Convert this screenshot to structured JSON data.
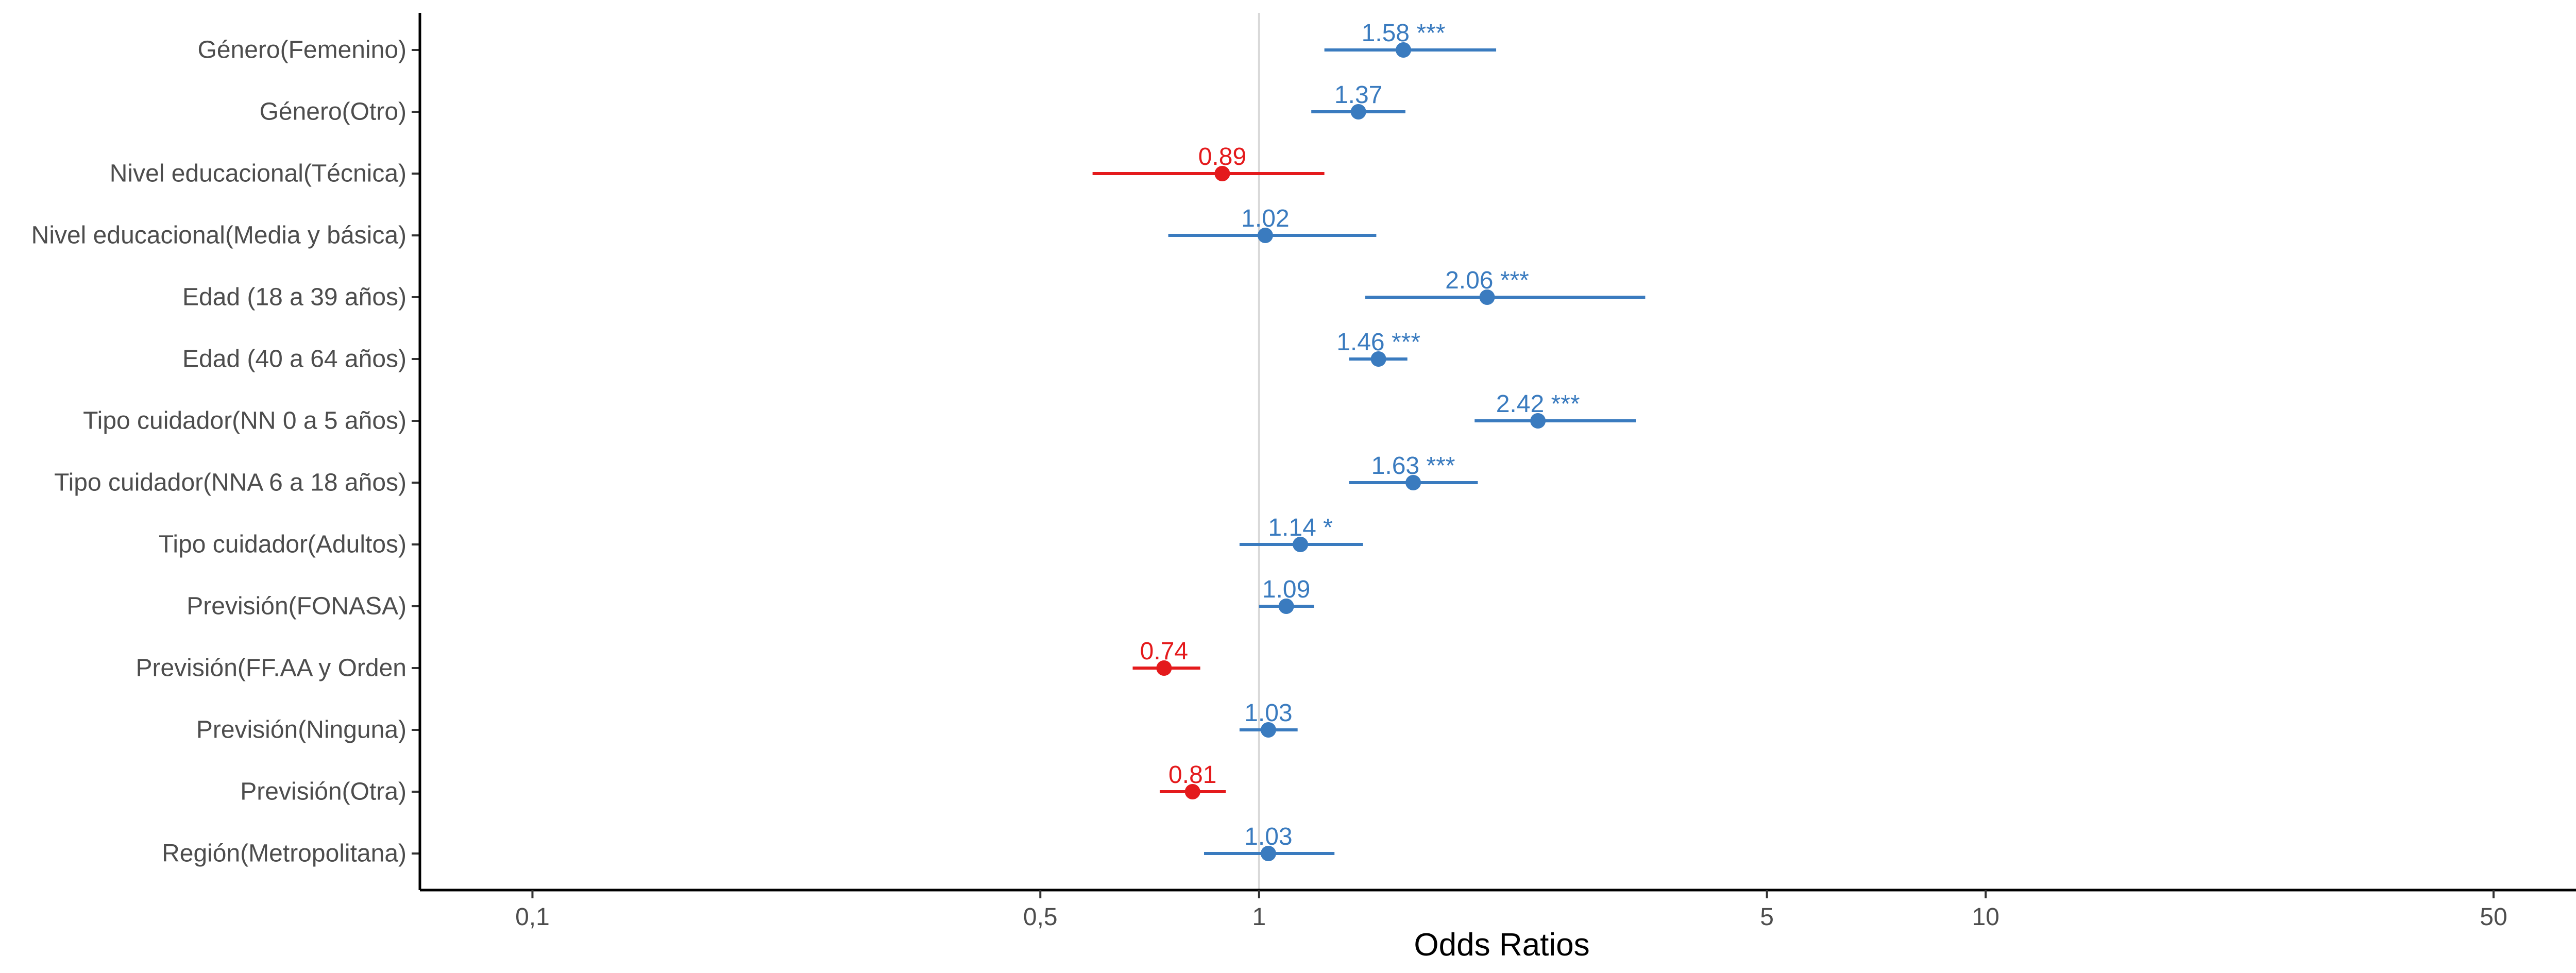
{
  "chart_data": {
    "type": "forest",
    "xlabel": "Odds Ratios",
    "xscale": "log",
    "xlim": [
      0.07,
      66
    ],
    "xticks": [
      0.1,
      0.5,
      1,
      5,
      10,
      50
    ],
    "xtick_labels": [
      "0,1",
      "0,5",
      "1",
      "5",
      "10",
      "50"
    ],
    "reference_line": 1,
    "grid": false,
    "colors": {
      "positive": "#3a7bbf",
      "negative": "#e41a1c",
      "reference": "#d9d9d9",
      "axis": "#000000"
    },
    "rows": [
      {
        "term": "Género(Femenino)",
        "estimate": 1.58,
        "ci_low": 1.23,
        "ci_high": 2.12,
        "label": "1.58 ***"
      },
      {
        "term": "Género(Otro)",
        "estimate": 1.37,
        "ci_low": 1.18,
        "ci_high": 1.59,
        "label": "1.37"
      },
      {
        "term": "Nivel educacional(Técnica)",
        "estimate": 0.89,
        "ci_low": 0.59,
        "ci_high": 1.23,
        "label": "0.89"
      },
      {
        "term": "Nivel educacional(Media y básica)",
        "estimate": 1.02,
        "ci_low": 0.75,
        "ci_high": 1.45,
        "label": "1.02"
      },
      {
        "term": "Edad (18 a 39 años)",
        "estimate": 2.06,
        "ci_low": 1.4,
        "ci_high": 3.4,
        "label": "2.06 ***"
      },
      {
        "term": "Edad (40 a 64 años)",
        "estimate": 1.46,
        "ci_low": 1.33,
        "ci_high": 1.6,
        "label": "1.46 ***"
      },
      {
        "term": "Tipo cuidador(NN 0 a 5 años)",
        "estimate": 2.42,
        "ci_low": 1.98,
        "ci_high": 3.3,
        "label": "2.42 ***"
      },
      {
        "term": "Tipo cuidador(NNA 6 a 18 años)",
        "estimate": 1.63,
        "ci_low": 1.33,
        "ci_high": 2.0,
        "label": "1.63 ***"
      },
      {
        "term": "Tipo cuidador(Adultos)",
        "estimate": 1.14,
        "ci_low": 0.94,
        "ci_high": 1.39,
        "label": "1.14 *"
      },
      {
        "term": "Previsión(FONASA)",
        "estimate": 1.09,
        "ci_low": 1.0,
        "ci_high": 1.19,
        "label": "1.09"
      },
      {
        "term": "Previsión(FF.AA y Orden",
        "estimate": 0.74,
        "ci_low": 0.67,
        "ci_high": 0.83,
        "label": "0.74"
      },
      {
        "term": "Previsión(Ninguna)",
        "estimate": 1.03,
        "ci_low": 0.94,
        "ci_high": 1.13,
        "label": "1.03"
      },
      {
        "term": "Previsión(Otra)",
        "estimate": 0.81,
        "ci_low": 0.73,
        "ci_high": 0.9,
        "label": "0.81"
      },
      {
        "term": "Región(Metropolitana)",
        "estimate": 1.03,
        "ci_low": 0.84,
        "ci_high": 1.27,
        "label": "1.03"
      }
    ]
  }
}
